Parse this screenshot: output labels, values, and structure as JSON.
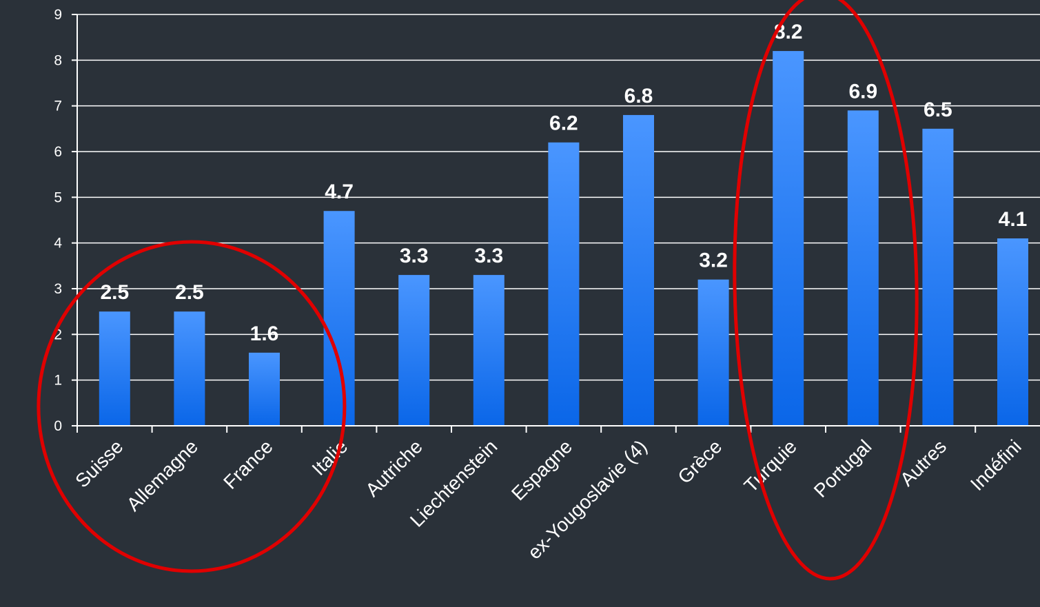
{
  "chart_data": {
    "type": "bar",
    "title": "",
    "xlabel": "",
    "ylabel": "",
    "ylim": [
      0,
      9
    ],
    "yticks": [
      0,
      1,
      2,
      3,
      4,
      5,
      6,
      7,
      8,
      9
    ],
    "grid": "horizontal",
    "categories": [
      "Suisse",
      "Allemagne",
      "France",
      "Italie",
      "Autriche",
      "Liechtenstein",
      "Espagne",
      "ex-Yougoslavie (4)",
      "Grèce",
      "Turquie",
      "Portugal",
      "Autres",
      "Indéfini"
    ],
    "values": [
      2.5,
      2.5,
      1.6,
      4.7,
      3.3,
      3.3,
      6.2,
      6.8,
      3.2,
      8.2,
      6.9,
      6.5,
      4.1
    ],
    "data_labels": [
      "2.5",
      "2.5",
      "1.6",
      "4.7",
      "3.3",
      "3.3",
      "6.2",
      "6.8",
      "3.2",
      "8.2",
      "6.9",
      "6.5",
      "4.1"
    ],
    "annotations": [
      {
        "type": "circle",
        "color": "#e00000",
        "around": [
          "Suisse",
          "Allemagne",
          "France"
        ]
      },
      {
        "type": "ellipse",
        "color": "#e00000",
        "around": [
          "Turquie",
          "Portugal"
        ]
      }
    ]
  },
  "colors": {
    "background": "#2a3139",
    "bar_top": "#4a96ff",
    "bar_bottom": "#0a66e8",
    "annotation": "#e00000",
    "text": "#ffffff"
  }
}
